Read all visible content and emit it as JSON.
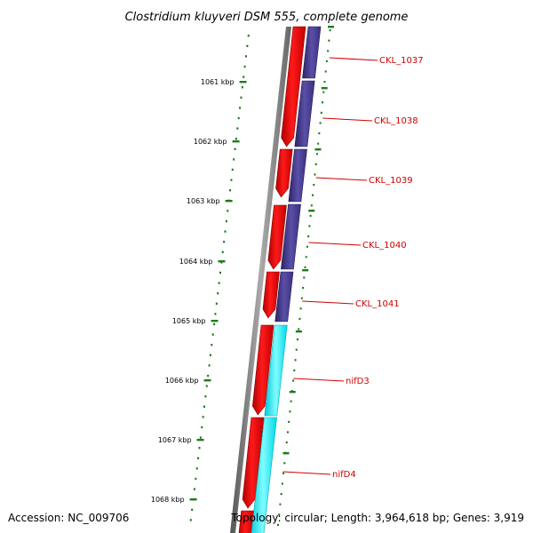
{
  "title": "Clostridium kluyveri DSM 555, complete genome",
  "footer": {
    "accession": "Accession: NC_009706",
    "topology": "Topology: circular; Length: 3,964,618 bp; Genes: 3,919"
  },
  "colors": {
    "backbone": "#777777",
    "forward_gene": "#ff0000",
    "reverse_gene": "#4a3f8c",
    "reverse_gene_highlight": "#00ffff",
    "ruler": "#1e7a1e",
    "gene_label": "#d00000",
    "label_line": "#d00000"
  },
  "ruler": {
    "ticks": [
      {
        "label": "1061 kbp"
      },
      {
        "label": "1062 kbp"
      },
      {
        "label": "1063 kbp"
      },
      {
        "label": "1064 kbp"
      },
      {
        "label": "1065 kbp"
      },
      {
        "label": "1066 kbp"
      },
      {
        "label": "1067 kbp"
      },
      {
        "label": "1068 kbp"
      }
    ]
  },
  "genes": [
    {
      "name": "CKL_1037",
      "strand": "reverse",
      "highlight": false
    },
    {
      "name": "CKL_1038",
      "strand": "reverse",
      "highlight": false
    },
    {
      "name": "CKL_1039",
      "strand": "reverse",
      "highlight": false
    },
    {
      "name": "CKL_1040",
      "strand": "reverse",
      "highlight": false
    },
    {
      "name": "CKL_1041",
      "strand": "reverse",
      "highlight": false
    },
    {
      "name": "nifD3",
      "strand": "reverse",
      "highlight": true
    },
    {
      "name": "nifD4",
      "strand": "reverse",
      "highlight": true
    }
  ]
}
